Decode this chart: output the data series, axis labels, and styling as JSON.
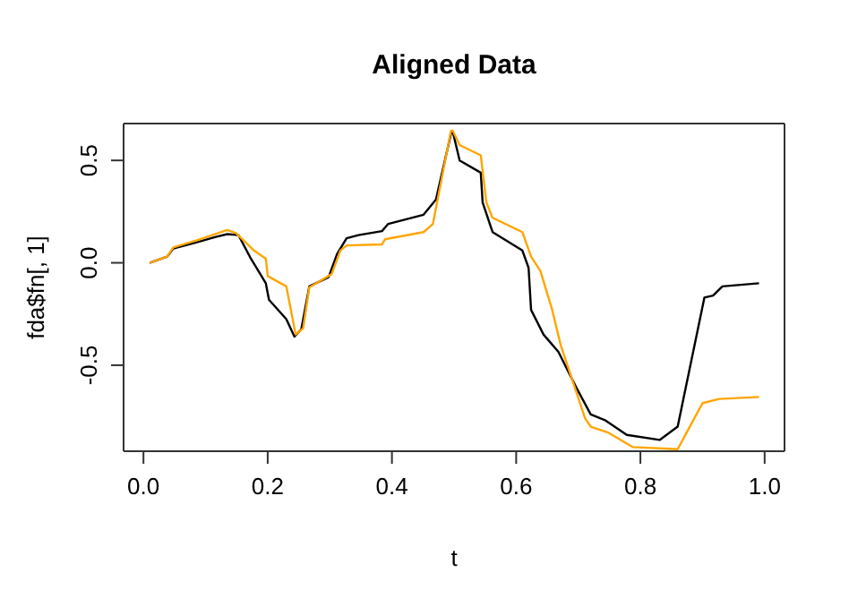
{
  "chart_data": {
    "type": "line",
    "title": "Aligned Data",
    "xlabel": "t",
    "ylabel": "fda$fn[, 1]",
    "xlim": [
      -0.032,
      1.032
    ],
    "ylim": [
      -0.92,
      0.68
    ],
    "xticks": [
      {
        "value": 0,
        "label": "0.0"
      },
      0.2,
      0.4,
      0.6,
      0.8,
      {
        "value": 1,
        "label": "1.0"
      }
    ],
    "yticks": [
      -0.5,
      {
        "value": 0,
        "label": "0.0"
      },
      0.5
    ],
    "grid": false,
    "legend": false,
    "marker": "none",
    "line_style": "solid",
    "series": [
      {
        "color": "#000000",
        "x": [
          0.01,
          0.038,
          0.048,
          0.086,
          0.115,
          0.135,
          0.153,
          0.173,
          0.197,
          0.202,
          0.23,
          0.243,
          0.254,
          0.267,
          0.298,
          0.312,
          0.327,
          0.346,
          0.384,
          0.394,
          0.451,
          0.471,
          0.495,
          0.498,
          0.509,
          0.543,
          0.546,
          0.562,
          0.61,
          0.62,
          0.624,
          0.644,
          0.668,
          0.697,
          0.72,
          0.744,
          0.778,
          0.831,
          0.86,
          0.903,
          0.917,
          0.932,
          0.991
        ],
        "values": [
          0.0,
          0.03,
          0.07,
          0.1,
          0.125,
          0.14,
          0.135,
          0.02,
          -0.1,
          -0.18,
          -0.275,
          -0.36,
          -0.325,
          -0.115,
          -0.07,
          0.045,
          0.12,
          0.135,
          0.155,
          0.19,
          0.235,
          0.31,
          0.63,
          0.64,
          0.5,
          0.44,
          0.295,
          0.15,
          0.06,
          -0.025,
          -0.23,
          -0.35,
          -0.435,
          -0.61,
          -0.74,
          -0.77,
          -0.84,
          -0.865,
          -0.8,
          -0.17,
          -0.16,
          -0.115,
          -0.1
        ]
      },
      {
        "color": "#ffa500",
        "x": [
          0.01,
          0.038,
          0.048,
          0.086,
          0.135,
          0.149,
          0.178,
          0.197,
          0.2,
          0.23,
          0.245,
          0.257,
          0.267,
          0.303,
          0.317,
          0.327,
          0.384,
          0.389,
          0.451,
          0.466,
          0.495,
          0.498,
          0.509,
          0.543,
          0.552,
          0.562,
          0.61,
          0.624,
          0.639,
          0.658,
          0.672,
          0.711,
          0.72,
          0.749,
          0.788,
          0.86,
          0.9,
          0.927,
          0.991
        ],
        "values": [
          0.0,
          0.03,
          0.075,
          0.11,
          0.16,
          0.145,
          0.06,
          0.02,
          -0.065,
          -0.115,
          -0.35,
          -0.32,
          -0.12,
          -0.055,
          0.06,
          0.085,
          0.09,
          0.115,
          0.15,
          0.19,
          0.645,
          0.645,
          0.575,
          0.525,
          0.295,
          0.22,
          0.15,
          0.03,
          -0.04,
          -0.23,
          -0.405,
          -0.76,
          -0.8,
          -0.83,
          -0.9,
          -0.91,
          -0.685,
          -0.665,
          -0.655
        ]
      }
    ]
  }
}
